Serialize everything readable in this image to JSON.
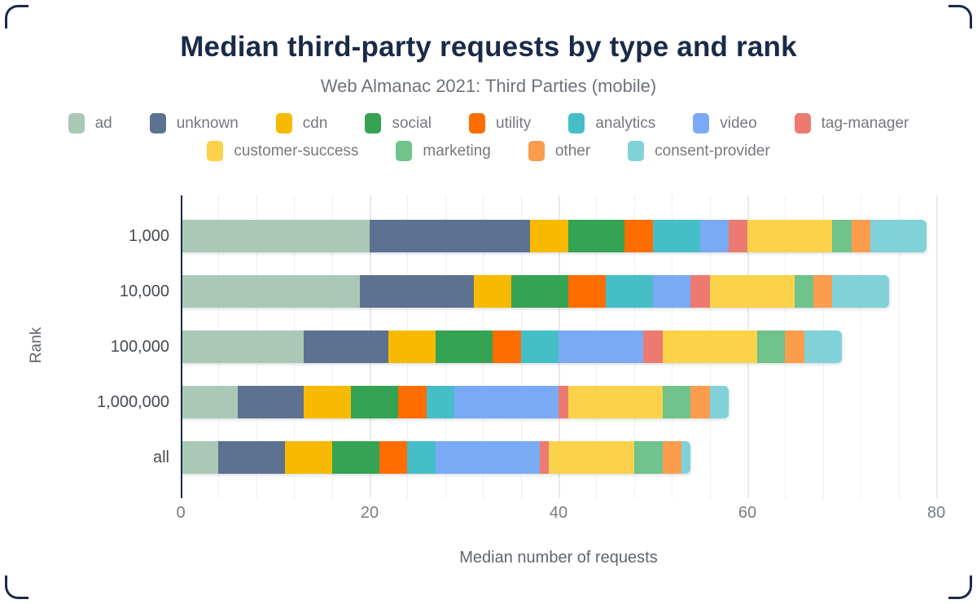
{
  "chart_data": {
    "type": "bar",
    "orientation": "horizontal",
    "stacked": true,
    "title": "Median third-party requests by type and rank",
    "subtitle": "Web Almanac 2021: Third Parties (mobile)",
    "xlabel": "Median number of requests",
    "ylabel": "Rank",
    "xlim": [
      0,
      80
    ],
    "x_ticks": [
      0,
      20,
      40,
      60,
      80
    ],
    "x_minor_gridline_step": 4,
    "grid": "vertical",
    "legend_position": "top",
    "categories": [
      "1,000",
      "10,000",
      "100,000",
      "1,000,000",
      "all"
    ],
    "series": [
      {
        "name": "ad",
        "color": "#a9c9b6",
        "values": [
          20,
          19,
          13,
          6,
          4
        ]
      },
      {
        "name": "unknown",
        "color": "#5d7191",
        "values": [
          17,
          12,
          9,
          7,
          7
        ]
      },
      {
        "name": "cdn",
        "color": "#f8ba00",
        "values": [
          4,
          4,
          5,
          5,
          5
        ]
      },
      {
        "name": "social",
        "color": "#34a353",
        "values": [
          6,
          6,
          6,
          5,
          5
        ]
      },
      {
        "name": "utility",
        "color": "#fe6d00",
        "values": [
          3,
          4,
          3,
          3,
          3
        ]
      },
      {
        "name": "analytics",
        "color": "#45bec8",
        "values": [
          5,
          5,
          4,
          3,
          3
        ]
      },
      {
        "name": "video",
        "color": "#7aaaf4",
        "values": [
          3,
          4,
          9,
          11,
          11
        ]
      },
      {
        "name": "tag-manager",
        "color": "#ed7a70",
        "values": [
          2,
          2,
          2,
          1,
          1
        ]
      },
      {
        "name": "customer-success",
        "color": "#fcd24b",
        "values": [
          9,
          9,
          10,
          10,
          9
        ]
      },
      {
        "name": "marketing",
        "color": "#6fc38b",
        "values": [
          2,
          2,
          3,
          3,
          3
        ]
      },
      {
        "name": "other",
        "color": "#fb9d4d",
        "values": [
          2,
          2,
          2,
          2,
          2
        ]
      },
      {
        "name": "consent-provider",
        "color": "#80d2d8",
        "values": [
          6,
          6,
          4,
          2,
          1
        ]
      }
    ],
    "totals": [
      79,
      75,
      70,
      58,
      54
    ],
    "legend_rows": [
      [
        "ad",
        "unknown",
        "cdn",
        "social",
        "utility",
        "analytics",
        "video",
        "tag-manager"
      ],
      [
        "customer-success",
        "marketing",
        "other",
        "consent-provider"
      ]
    ]
  },
  "colors": {
    "title": "#1a2b49",
    "subtitle": "#6d737c",
    "axis_line": "#1a2b49",
    "legend_text": "#75787d",
    "category_label": "#454b52",
    "tick_label": "#787d83",
    "axis_title": "#5f666d",
    "gridline_major": "#e9eaec",
    "gridline_minor": "#dce1e4",
    "background": "#ffffff",
    "card_corner": "#1a2b49"
  }
}
